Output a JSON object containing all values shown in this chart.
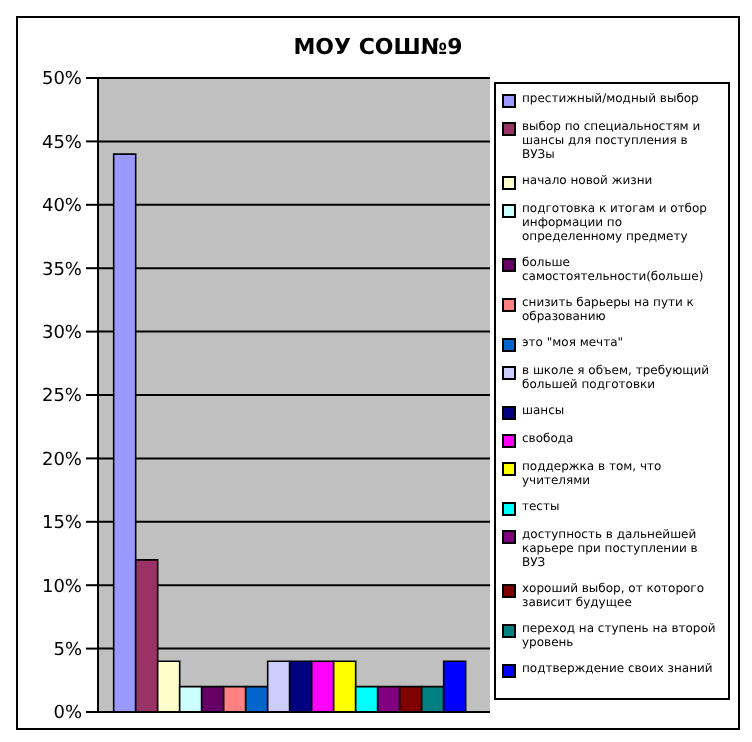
{
  "chart_data": {
    "type": "bar",
    "title": "МОУ СОШ№9",
    "categories": [
      null
    ],
    "ylim": [
      0,
      50
    ],
    "yticks": [
      {
        "value": 0,
        "label": "0%"
      },
      {
        "value": 5,
        "label": "5%"
      },
      {
        "value": 10,
        "label": "10%"
      },
      {
        "value": 15,
        "label": "15%"
      },
      {
        "value": 20,
        "label": "20%"
      },
      {
        "value": 25,
        "label": "25%"
      },
      {
        "value": 30,
        "label": "30%"
      },
      {
        "value": 35,
        "label": "35%"
      },
      {
        "value": 40,
        "label": "40%"
      },
      {
        "value": 45,
        "label": "45%"
      },
      {
        "value": 50,
        "label": "50%"
      }
    ],
    "grid": "y",
    "legend": "right",
    "tick_labels": "y",
    "series": [
      {
        "name": "престижный/модный выбор",
        "color": "#9999ff",
        "values": [
          44
        ]
      },
      {
        "name": "выбор по специальностям и шансы для поступления в ВУЗы",
        "color": "#993366",
        "values": [
          12
        ]
      },
      {
        "name": "начало новой жизни",
        "color": "#ffffcc",
        "values": [
          4
        ]
      },
      {
        "name": "подготовка к итогам и отбор информации по определенному предмету",
        "color": "#ccffff",
        "values": [
          2
        ]
      },
      {
        "name": "больше самостоятельности(больше)",
        "color": "#660066",
        "values": [
          2
        ]
      },
      {
        "name": "снизить барьеры на пути к образованию",
        "color": "#ff8080",
        "values": [
          2
        ]
      },
      {
        "name": "это \"моя мечта\"",
        "color": "#0066cc",
        "values": [
          2
        ]
      },
      {
        "name": "в школе я объем, требующий большей подготовки",
        "color": "#ccccff",
        "values": [
          4
        ]
      },
      {
        "name": "шансы",
        "color": "#000080",
        "values": [
          4
        ]
      },
      {
        "name": "свобода",
        "color": "#ff00ff",
        "values": [
          4
        ]
      },
      {
        "name": "поддержка в том, что учителями",
        "color": "#ffff00",
        "values": [
          4
        ]
      },
      {
        "name": "тесты",
        "color": "#00ffff",
        "values": [
          2
        ]
      },
      {
        "name": "доступность в дальнейшей карьере при поступлении в ВУЗ",
        "color": "#800080",
        "values": [
          2
        ]
      },
      {
        "name": "хороший выбор, от которого зависит будущее",
        "color": "#800000",
        "values": [
          2
        ]
      },
      {
        "name": "переход на ступень на второй уровень",
        "color": "#008080",
        "values": [
          2
        ]
      },
      {
        "name": "подтверждение своих знаний",
        "color": "#0000ff",
        "values": [
          4
        ]
      }
    ]
  }
}
